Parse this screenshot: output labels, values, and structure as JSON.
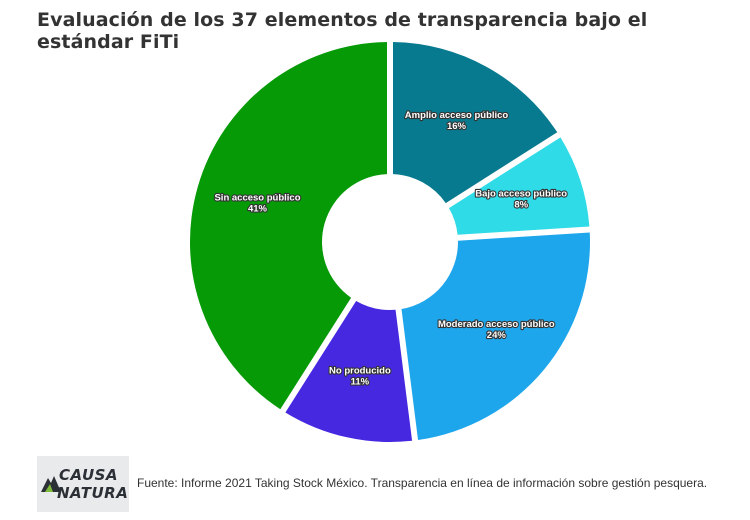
{
  "title": "Evaluación de los 37 elementos de transparencia bajo el estándar FiTi",
  "chart_data": {
    "type": "pie",
    "hole": true,
    "slices": [
      {
        "label": "Amplio acceso público",
        "value": 16,
        "pct_label": "16%",
        "color": "#087a8f"
      },
      {
        "label": "Bajo acceso público",
        "value": 8,
        "pct_label": "8%",
        "color": "#2edbe6"
      },
      {
        "label": "Moderado acceso público",
        "value": 24,
        "pct_label": "24%",
        "color": "#1ea6ec"
      },
      {
        "label": "No producido",
        "value": 11,
        "pct_label": "11%",
        "color": "#4628e0"
      },
      {
        "label": "Sin acceso público",
        "value": 41,
        "pct_label": "41%",
        "color": "#069a06"
      }
    ]
  },
  "footer": {
    "logo_line1": "CAUSA",
    "logo_line2": "NATURA",
    "source": "Fuente: Informe 2021 Taking Stock México. Transparencia en línea de información sobre gestión pesquera."
  }
}
